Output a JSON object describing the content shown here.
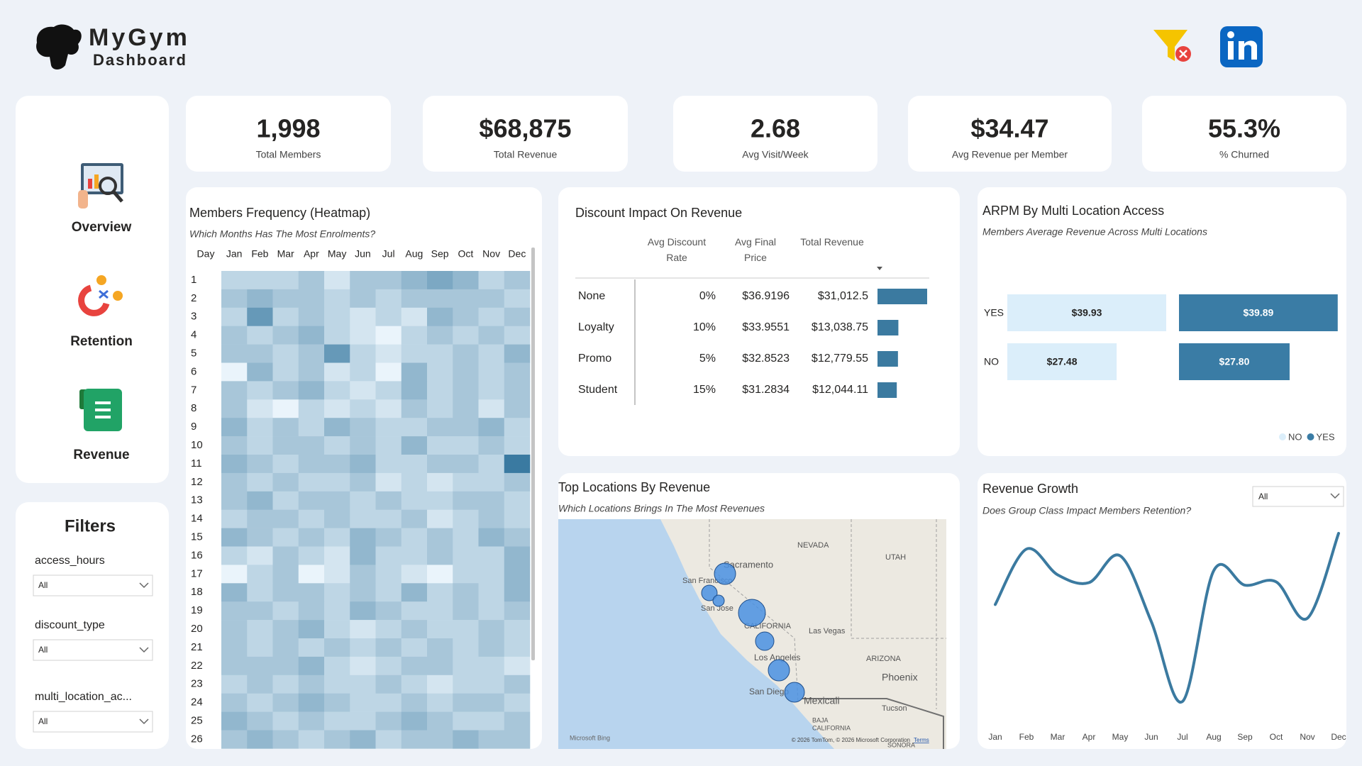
{
  "header": {
    "title": "MyGym",
    "subtitle": "Dashboard"
  },
  "nav": [
    "Overview",
    "Retention",
    "Revenue"
  ],
  "filters": {
    "title": "Filters",
    "items": [
      {
        "label": "access_hours",
        "value": "All"
      },
      {
        "label": "discount_type",
        "value": "All"
      },
      {
        "label": "multi_location_ac...",
        "value": "All"
      }
    ]
  },
  "kpis": [
    {
      "value": "1,998",
      "label": "Total Members"
    },
    {
      "value": "$68,875",
      "label": "Total Revenue"
    },
    {
      "value": "2.68",
      "label": "Avg Visit/Week"
    },
    {
      "value": "$34.47",
      "label": "Avg Revenue per Member"
    },
    {
      "value": "55.3%",
      "label": "% Churned"
    }
  ],
  "discount_table": {
    "title": "Discount Impact On Revenue",
    "columns": [
      "Avg Discount Rate",
      "Avg Final Price",
      "Total Revenue"
    ],
    "bar_color": "#3b7aa0",
    "rows": [
      {
        "type": "None",
        "rate": "0%",
        "price": "$36.9196",
        "revenue": {
          "value": 31012.5,
          "label": "$31,012.5"
        }
      },
      {
        "type": "Loyalty",
        "rate": "10%",
        "price": "$33.9551",
        "revenue": {
          "value": 13038.75,
          "label": "$13,038.75"
        }
      },
      {
        "type": "Promo",
        "rate": "5%",
        "price": "$32.8523",
        "revenue": {
          "value": 12779.55,
          "label": "$12,779.55"
        }
      },
      {
        "type": "Student",
        "rate": "15%",
        "price": "$31.2834",
        "revenue": {
          "value": 12044.11,
          "label": "$12,044.11"
        }
      }
    ]
  },
  "map": {
    "title": "Top Locations By Revenue",
    "subtitle": "Which Locations Brings In The Most Revenues",
    "labels": [
      "NEVADA",
      "UTAH",
      "Sacramento",
      "San Francisco",
      "San Jose",
      "CALIFORNIA",
      "Las Vegas",
      "Los Angeles",
      "ARIZONA",
      "Phoenix",
      "San Diego",
      "Mexicali",
      "Tucson",
      "BAJA",
      "CALIFORNIA",
      "SONORA"
    ],
    "provider": "Microsoft Bing",
    "attribution": "© 2026 TomTom, © 2026 Microsoft Corporation",
    "terms": "Terms"
  },
  "chart_data": [
    {
      "type": "heatmap",
      "title": "Members Frequency (Heatmap)",
      "subtitle": "Which Months Has The Most Enrolments?",
      "corner_label": "Day",
      "categories": [
        "Jan",
        "Feb",
        "Mar",
        "Apr",
        "May",
        "Jun",
        "Jul",
        "Aug",
        "Sep",
        "Oct",
        "Nov",
        "Dec"
      ],
      "rows": [
        1,
        2,
        3,
        4,
        5,
        6,
        7,
        8,
        9,
        10,
        11,
        12,
        13,
        14,
        15,
        16,
        17,
        18,
        19,
        20,
        21,
        22,
        23,
        24,
        25,
        26
      ],
      "colors": [
        "#eaf4fb",
        "#3a7aa1"
      ],
      "values": [
        [
          4,
          4,
          4,
          5,
          3,
          5,
          5,
          6,
          7,
          6,
          4,
          5
        ],
        [
          5,
          6,
          5,
          5,
          4,
          5,
          4,
          5,
          5,
          5,
          5,
          4
        ],
        [
          4,
          8,
          4,
          5,
          4,
          3,
          4,
          3,
          6,
          5,
          4,
          5
        ],
        [
          5,
          4,
          5,
          6,
          4,
          3,
          2,
          4,
          5,
          4,
          5,
          4
        ],
        [
          5,
          5,
          4,
          5,
          8,
          4,
          3,
          4,
          4,
          5,
          4,
          6
        ],
        [
          2,
          6,
          4,
          5,
          3,
          4,
          2,
          6,
          4,
          5,
          4,
          5
        ],
        [
          5,
          4,
          5,
          6,
          4,
          3,
          4,
          6,
          4,
          5,
          4,
          5
        ],
        [
          5,
          3,
          2,
          4,
          3,
          4,
          3,
          5,
          4,
          5,
          3,
          5
        ],
        [
          6,
          4,
          5,
          4,
          6,
          5,
          4,
          4,
          5,
          5,
          6,
          4
        ],
        [
          5,
          4,
          5,
          5,
          4,
          5,
          4,
          6,
          4,
          4,
          5,
          4
        ],
        [
          6,
          5,
          4,
          5,
          5,
          6,
          4,
          4,
          5,
          5,
          4,
          10
        ],
        [
          5,
          4,
          5,
          4,
          4,
          5,
          3,
          4,
          3,
          4,
          4,
          5
        ],
        [
          5,
          6,
          4,
          5,
          5,
          4,
          5,
          4,
          4,
          5,
          5,
          4
        ],
        [
          4,
          5,
          5,
          4,
          5,
          4,
          4,
          5,
          3,
          4,
          5,
          4
        ],
        [
          6,
          5,
          4,
          5,
          4,
          6,
          5,
          4,
          5,
          4,
          6,
          5
        ],
        [
          4,
          3,
          5,
          4,
          3,
          6,
          4,
          4,
          5,
          4,
          4,
          6
        ],
        [
          2,
          4,
          5,
          2,
          3,
          5,
          4,
          3,
          2,
          4,
          4,
          6
        ],
        [
          6,
          4,
          5,
          5,
          4,
          5,
          4,
          6,
          4,
          5,
          4,
          6
        ],
        [
          5,
          5,
          4,
          5,
          4,
          6,
          5,
          4,
          4,
          5,
          4,
          5
        ],
        [
          5,
          4,
          5,
          6,
          4,
          3,
          4,
          5,
          4,
          4,
          5,
          4
        ],
        [
          5,
          4,
          5,
          4,
          5,
          4,
          5,
          4,
          5,
          4,
          5,
          4
        ],
        [
          5,
          5,
          5,
          6,
          4,
          3,
          4,
          5,
          5,
          4,
          4,
          3
        ],
        [
          4,
          5,
          4,
          5,
          4,
          4,
          5,
          4,
          3,
          4,
          4,
          5
        ],
        [
          5,
          4,
          5,
          6,
          5,
          4,
          4,
          5,
          4,
          5,
          5,
          4
        ],
        [
          6,
          5,
          4,
          5,
          4,
          4,
          5,
          6,
          5,
          4,
          4,
          5
        ],
        [
          5,
          6,
          5,
          4,
          5,
          6,
          4,
          5,
          5,
          6,
          5,
          5
        ]
      ]
    },
    {
      "type": "bar",
      "orientation": "horizontal",
      "title": "ARPM By Multi Location Access",
      "subtitle": "Members Average Revenue Across Multi Locations",
      "categories": [
        "YES",
        "NO"
      ],
      "legend": "bottom-right",
      "series": [
        {
          "name": "NO",
          "color": "#dbeefa",
          "values": [
            39.93,
            27.48
          ],
          "value_labels": [
            "$39.93",
            "$27.48"
          ]
        },
        {
          "name": "YES",
          "color": "#3a7ca5",
          "values": [
            39.89,
            27.8
          ],
          "value_labels": [
            "$39.89",
            "$27.80"
          ]
        }
      ]
    },
    {
      "type": "line",
      "title": "Revenue Growth",
      "subtitle": "Does Group Class Impact Members Retention?",
      "filter_value": "All",
      "color": "#3b7aa0",
      "categories": [
        "Jan",
        "Feb",
        "Mar",
        "Apr",
        "May",
        "Jun",
        "Jul",
        "Aug",
        "Sep",
        "Oct",
        "Nov",
        "Dec"
      ],
      "values": [
        5746,
        5944,
        5852,
        5824,
        5920,
        5685,
        5400,
        5867,
        5815,
        5827,
        5697,
        6000
      ]
    }
  ]
}
